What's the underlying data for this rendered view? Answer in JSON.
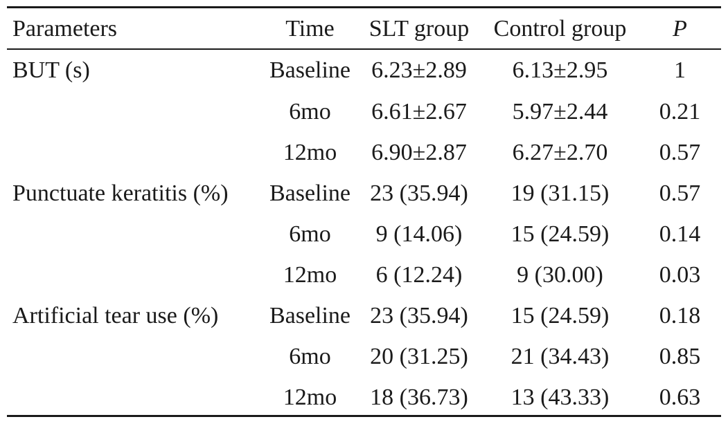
{
  "table": {
    "headers": {
      "parameters": "Parameters",
      "time": "Time",
      "slt": "SLT group",
      "control": "Control group",
      "p": "P"
    },
    "rows": [
      {
        "parameter": "BUT (s)",
        "time": "Baseline",
        "slt": "6.23±2.89",
        "control": "6.13±2.95",
        "p": "1"
      },
      {
        "parameter": "",
        "time": "6mo",
        "slt": "6.61±2.67",
        "control": "5.97±2.44",
        "p": "0.21"
      },
      {
        "parameter": "",
        "time": "12mo",
        "slt": "6.90±2.87",
        "control": "6.27±2.70",
        "p": "0.57"
      },
      {
        "parameter": "Punctuate keratitis (%)",
        "time": "Baseline",
        "slt": "23 (35.94)",
        "control": "19 (31.15)",
        "p": "0.57"
      },
      {
        "parameter": "",
        "time": "6mo",
        "slt": "9 (14.06)",
        "control": "15 (24.59)",
        "p": "0.14"
      },
      {
        "parameter": "",
        "time": "12mo",
        "slt": "6 (12.24)",
        "control": "9 (30.00)",
        "p": "0.03"
      },
      {
        "parameter": "Artificial tear use (%)",
        "time": "Baseline",
        "slt": "23 (35.94)",
        "control": "15 (24.59)",
        "p": "0.18"
      },
      {
        "parameter": "",
        "time": "6mo",
        "slt": "20 (31.25)",
        "control": "21 (34.43)",
        "p": "0.85"
      },
      {
        "parameter": "",
        "time": "12mo",
        "slt": "18 (36.73)",
        "control": "13 (43.33)",
        "p": "0.63"
      }
    ]
  }
}
